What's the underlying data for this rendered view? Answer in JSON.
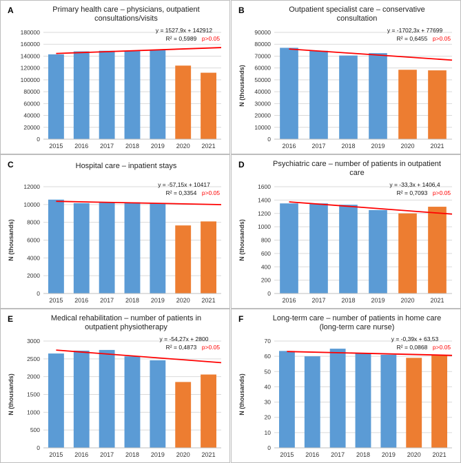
{
  "colors": {
    "bar_prepandemic": "#5b9bd5",
    "bar_pandemic": "#ed7d31",
    "trendline": "#ff0000",
    "pvalue_text": "#ff0000",
    "gridline": "#d9d9d9"
  },
  "chart_data": [
    {
      "panel": "A",
      "type": "bar",
      "title": "Primary health care – physicians, outpatient consultations/visits",
      "ylabel": "",
      "categories": [
        "2015",
        "2016",
        "2017",
        "2018",
        "2019",
        "2020",
        "2021"
      ],
      "values": [
        143000,
        148000,
        149000,
        148500,
        150000,
        124000,
        112000
      ],
      "highlight": [
        false,
        false,
        false,
        false,
        false,
        true,
        true
      ],
      "ylim": [
        0,
        180000
      ],
      "yticks": [
        "0",
        "20000",
        "40000",
        "60000",
        "80000",
        "100000",
        "120000",
        "140000",
        "160000",
        "180000"
      ],
      "trendline": {
        "slope": 1527.9,
        "intercept": 142912
      },
      "equation": "y = 1527,9x + 142912",
      "r2": "R² = 0,5989",
      "pvalue": "p>0.05",
      "grid": true
    },
    {
      "panel": "B",
      "type": "bar",
      "title": "Outpatient specialist care – conservative consultation",
      "ylabel": "N (thousands)",
      "categories": [
        "2016",
        "2017",
        "2018",
        "2019",
        "2020",
        "2021"
      ],
      "values": [
        77000,
        74500,
        70500,
        72500,
        58500,
        58000
      ],
      "highlight": [
        false,
        false,
        false,
        false,
        true,
        true
      ],
      "ylim": [
        0,
        90000
      ],
      "yticks": [
        "0",
        "10000",
        "20000",
        "30000",
        "40000",
        "50000",
        "60000",
        "70000",
        "80000",
        "90000"
      ],
      "trendline": {
        "slope": -1702.3,
        "intercept": 77699
      },
      "equation": "y = -1702,3x + 77699",
      "r2": "R² = 0,6455",
      "pvalue": "p>0.05",
      "grid": true
    },
    {
      "panel": "C",
      "type": "bar",
      "title": "Hospital care – inpatient stays",
      "ylabel": "N (thousands)",
      "categories": [
        "2015",
        "2016",
        "2017",
        "2018",
        "2019",
        "2020",
        "2021"
      ],
      "values": [
        10550,
        10150,
        10200,
        10250,
        10100,
        7650,
        8100
      ],
      "highlight": [
        false,
        false,
        false,
        false,
        false,
        true,
        true
      ],
      "ylim": [
        0,
        12000
      ],
      "yticks": [
        "0",
        "2000",
        "4000",
        "6000",
        "8000",
        "10000",
        "12000"
      ],
      "trendline": {
        "slope": -57.15,
        "intercept": 10417
      },
      "equation": "y = -57,15x + 10417",
      "r2": "R² = 0,3354",
      "pvalue": "p>0.05",
      "grid": true
    },
    {
      "panel": "D",
      "type": "bar",
      "title": "Psychiatric care – number of patients in outpatient care",
      "ylabel": "N (thousands)",
      "categories": [
        "2016",
        "2017",
        "2018",
        "2019",
        "2020",
        "2021"
      ],
      "values": [
        1350,
        1350,
        1330,
        1250,
        1200,
        1300
      ],
      "highlight": [
        false,
        false,
        false,
        false,
        true,
        true
      ],
      "ylim": [
        0,
        1600
      ],
      "yticks": [
        "0",
        "200",
        "400",
        "600",
        "800",
        "1000",
        "1200",
        "1400",
        "1600"
      ],
      "trendline": {
        "slope": -33.3,
        "intercept": 1406.4
      },
      "equation": "y = -33,3x + 1406,4",
      "r2": "R² = 0,7093",
      "pvalue": "p>0.05",
      "grid": true
    },
    {
      "panel": "E",
      "type": "bar",
      "title": "Medical rehabilitation – number of patients in outpatient physiotherapy",
      "ylabel": "N (thousands)",
      "categories": [
        "2015",
        "2016",
        "2017",
        "2018",
        "2019",
        "2020",
        "2021"
      ],
      "values": [
        2650,
        2730,
        2750,
        2570,
        2460,
        1850,
        2060
      ],
      "highlight": [
        false,
        false,
        false,
        false,
        false,
        true,
        true
      ],
      "ylim": [
        0,
        3000
      ],
      "yticks": [
        "0",
        "500",
        "1000",
        "1500",
        "2000",
        "2500",
        "3000"
      ],
      "trendline": {
        "slope": -54.27,
        "intercept": 2800
      },
      "equation": "y = -54,27x + 2800",
      "r2": "R² = 0,4873",
      "pvalue": "p>0.05",
      "grid": true
    },
    {
      "panel": "F",
      "type": "bar",
      "title": "Long-term care – number of patients in home care (long-term care nurse)",
      "ylabel": "N (thousands)",
      "categories": [
        "2015",
        "2016",
        "2017",
        "2018",
        "2019",
        "2020",
        "2021"
      ],
      "values": [
        63.5,
        60,
        65,
        62,
        61,
        59,
        60.5
      ],
      "highlight": [
        false,
        false,
        false,
        false,
        false,
        true,
        true
      ],
      "ylim": [
        0,
        70
      ],
      "yticks": [
        "0",
        "10",
        "20",
        "30",
        "40",
        "50",
        "60",
        "70"
      ],
      "trendline": {
        "slope": -0.39,
        "intercept": 63.53
      },
      "equation": "y = -0,39x + 63,53",
      "r2": "R² = 0,0868",
      "pvalue": "p>0.05",
      "grid": true
    }
  ]
}
